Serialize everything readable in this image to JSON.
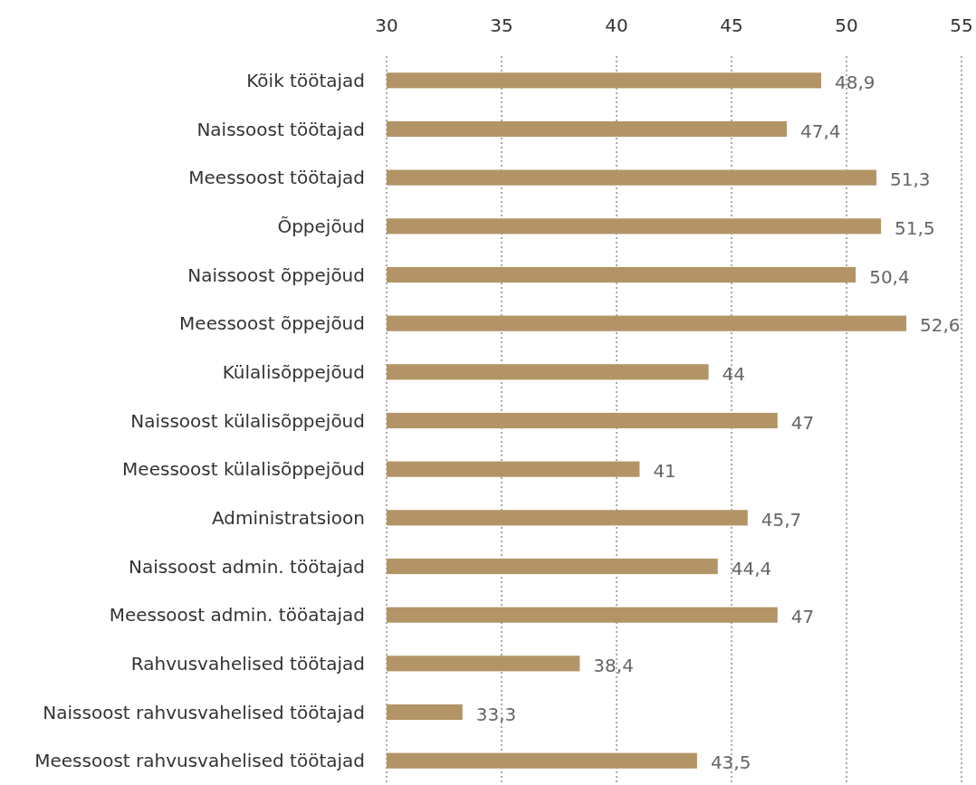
{
  "chart_data": {
    "type": "bar",
    "orientation": "horizontal",
    "categories": [
      "Kõik töötajad",
      "Naissoost töötajad",
      "Meessoost töötajad",
      "Õppejõud",
      "Naissoost õppejõud",
      "Meessoost õppejõud",
      "Külalisõppejõud",
      "Naissoost külalisõppejõud",
      "Meessoost külalisõppejõud",
      "Administratsioon",
      "Naissoost admin. töötajad",
      "Meessoost admin. tööatajad",
      "Rahvusvahelised töötajad",
      "Naissoost rahvusvahelised töötajad",
      "Meessoost rahvusvahelised töötajad"
    ],
    "values": [
      48.9,
      47.4,
      51.3,
      51.5,
      50.4,
      52.6,
      44,
      47,
      41,
      45.7,
      44.4,
      47,
      38.4,
      33.3,
      43.5
    ],
    "value_labels": [
      "48,9",
      "47,4",
      "51,3",
      "51,5",
      "50,4",
      "52,6",
      "44",
      "47",
      "41",
      "45,7",
      "44,4",
      "47",
      "38,4",
      "33,3",
      "43,5"
    ],
    "color": "#b39467",
    "xlim": [
      30,
      55
    ],
    "xticks": [
      30,
      35,
      40,
      45,
      50,
      55
    ],
    "grid": "x"
  }
}
